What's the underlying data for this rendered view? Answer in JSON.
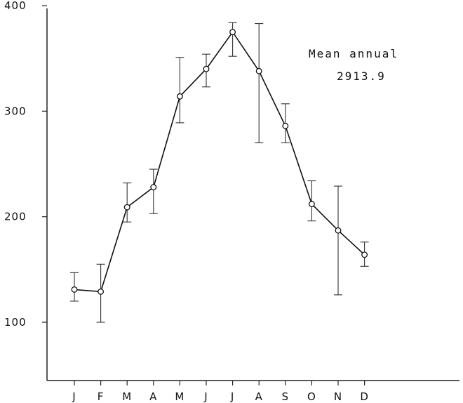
{
  "chart_data": {
    "type": "line",
    "categories": [
      "J",
      "F",
      "M",
      "A",
      "M",
      "J",
      "J",
      "A",
      "S",
      "O",
      "N",
      "D"
    ],
    "series": [
      {
        "values": [
          131,
          129,
          209,
          228,
          314,
          340,
          375,
          338,
          286,
          212,
          187,
          164
        ],
        "error_low": [
          120,
          100,
          195,
          203,
          289,
          323,
          352,
          270,
          270,
          196,
          126,
          153
        ],
        "error_high": [
          147,
          155,
          232,
          245,
          351,
          354,
          384,
          383,
          307,
          234,
          229,
          176
        ]
      }
    ],
    "yticks": [
      100,
      200,
      300,
      400
    ],
    "ylim": [
      40,
      400
    ],
    "grid": false,
    "annotation": {
      "line1": "Mean annual",
      "line2": "2913.9"
    },
    "marker_fill": "#ffffff",
    "line_color": "#111111"
  }
}
